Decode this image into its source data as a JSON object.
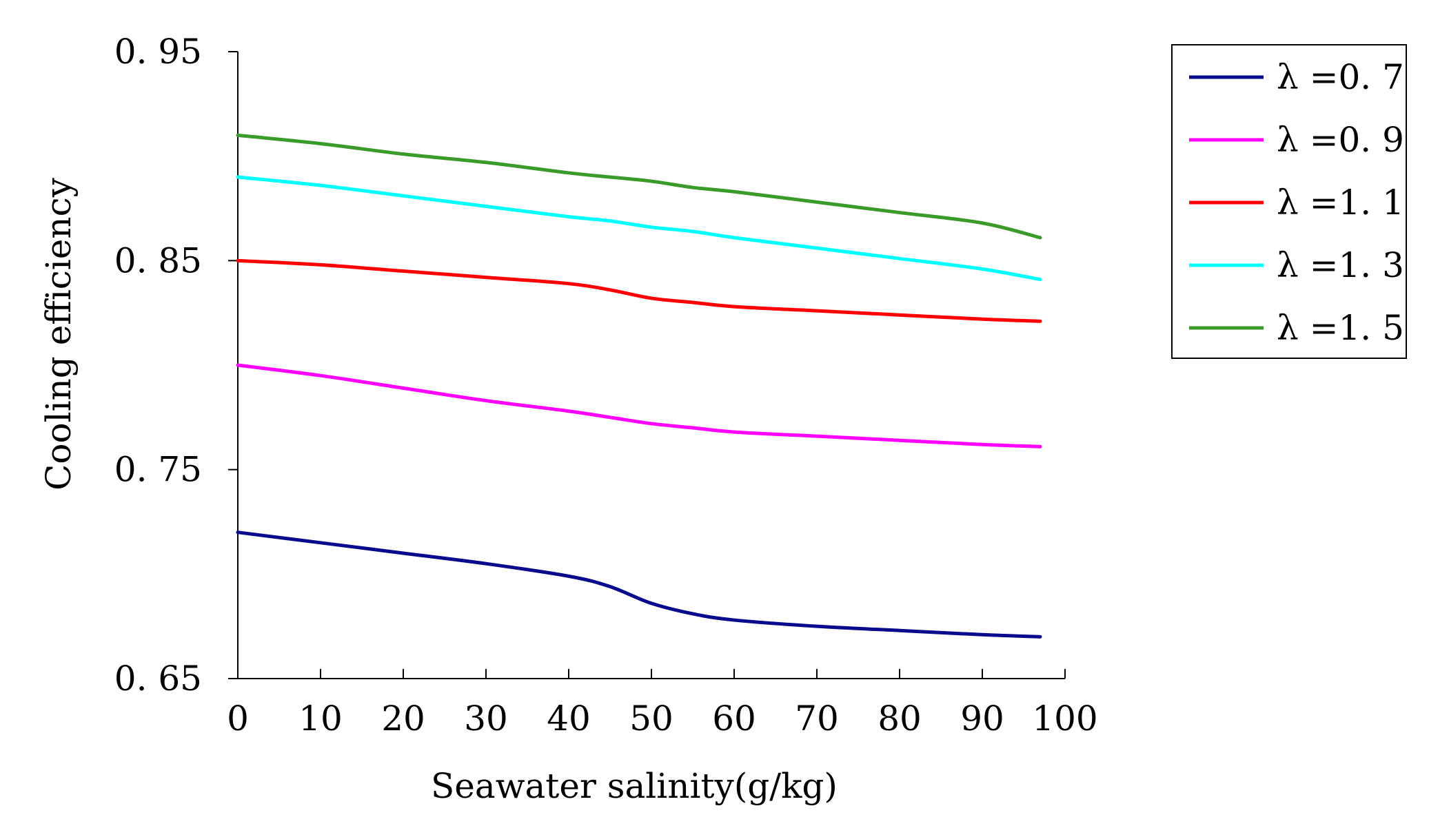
{
  "chart_data": {
    "type": "line",
    "title": "",
    "xlabel": "Seawater salinity(g/kg)",
    "ylabel": "Cooling efficiency",
    "xlim": [
      0,
      100
    ],
    "ylim": [
      0.65,
      0.95
    ],
    "x_ticks": [
      0,
      10,
      20,
      30,
      40,
      50,
      60,
      70,
      80,
      90,
      100
    ],
    "x_tick_labels": [
      "0",
      "10",
      "20",
      "30",
      "40",
      "50",
      "60",
      "70",
      "80",
      "90",
      "100"
    ],
    "y_ticks": [
      0.65,
      0.75,
      0.85,
      0.95
    ],
    "y_tick_labels": [
      "0. 65",
      "0. 75",
      "0. 85",
      "0. 95"
    ],
    "grid": false,
    "legend_position": "top-right",
    "x": [
      0,
      10,
      20,
      30,
      40,
      45,
      50,
      55,
      60,
      70,
      80,
      90,
      97
    ],
    "series": [
      {
        "name": "λ =0. 7",
        "color": "#0a0a8c",
        "values": [
          0.72,
          0.715,
          0.71,
          0.705,
          0.699,
          0.694,
          0.686,
          0.681,
          0.678,
          0.675,
          0.673,
          0.671,
          0.67
        ]
      },
      {
        "name": "λ =0. 9",
        "color": "#ff00ff",
        "values": [
          0.8,
          0.795,
          0.789,
          0.783,
          0.778,
          0.775,
          0.772,
          0.77,
          0.768,
          0.766,
          0.764,
          0.762,
          0.761
        ]
      },
      {
        "name": "λ =1. 1",
        "color": "#ff0000",
        "values": [
          0.85,
          0.848,
          0.845,
          0.842,
          0.839,
          0.836,
          0.832,
          0.83,
          0.828,
          0.826,
          0.824,
          0.822,
          0.821
        ]
      },
      {
        "name": "λ =1. 3",
        "color": "#00ffff",
        "values": [
          0.89,
          0.886,
          0.881,
          0.876,
          0.871,
          0.869,
          0.866,
          0.864,
          0.861,
          0.856,
          0.851,
          0.846,
          0.841
        ]
      },
      {
        "name": "λ =1. 5",
        "color": "#3a9a2a",
        "values": [
          0.91,
          0.906,
          0.901,
          0.897,
          0.892,
          0.89,
          0.888,
          0.885,
          0.883,
          0.878,
          0.873,
          0.868,
          0.861
        ]
      }
    ]
  }
}
